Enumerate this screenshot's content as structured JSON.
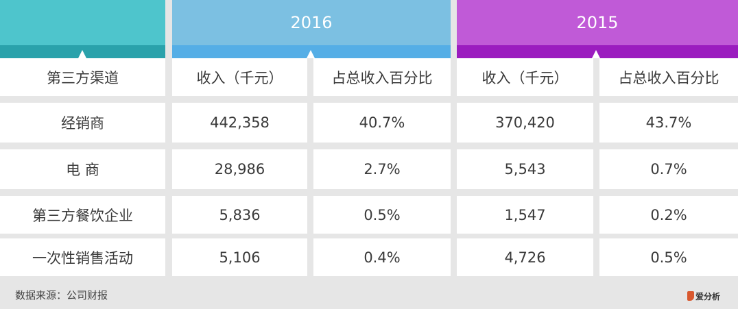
{
  "header": {
    "year_2016": "2016",
    "year_2015": "2015"
  },
  "colors": {
    "teal_top": "#4ec5cc",
    "teal_band": "#2aa2ab",
    "blue_top": "#7cc0e2",
    "blue_band": "#55aee6",
    "purple_top": "#c05ad7",
    "purple_band": "#9b1cbf"
  },
  "columns": [
    "第三方渠道",
    "收入（千元）",
    "占总收入百分比",
    "收入（千元）",
    "占总收入百分比"
  ],
  "rows": [
    [
      "经销商",
      "442,358",
      "40.7%",
      "370,420",
      "43.7%"
    ],
    [
      "电 商",
      "28,986",
      "2.7%",
      "5,543",
      "0.7%"
    ],
    [
      "第三方餐饮企业",
      "5,836",
      "0.5%",
      "1,547",
      "0.2%"
    ],
    [
      "一次性销售活动",
      "5,106",
      "0.4%",
      "4,726",
      "0.5%"
    ]
  ],
  "footer": {
    "source": "数据来源：公司财报",
    "logo_text": "爱分析"
  },
  "chart_data": {
    "type": "table",
    "title": "",
    "group_headers": [
      "2016",
      "2015"
    ],
    "categories": [
      "经销商",
      "电 商",
      "第三方餐饮企业",
      "一次性销售活动"
    ],
    "series": [
      {
        "name": "2016 收入（千元）",
        "values": [
          442358,
          28986,
          5836,
          5106
        ]
      },
      {
        "name": "2016 占总收入百分比",
        "values": [
          40.7,
          2.7,
          0.5,
          0.4
        ]
      },
      {
        "name": "2015 收入（千元）",
        "values": [
          370420,
          5543,
          1547,
          4726
        ]
      },
      {
        "name": "2015 占总收入百分比",
        "values": [
          43.7,
          0.7,
          0.2,
          0.5
        ]
      }
    ]
  }
}
